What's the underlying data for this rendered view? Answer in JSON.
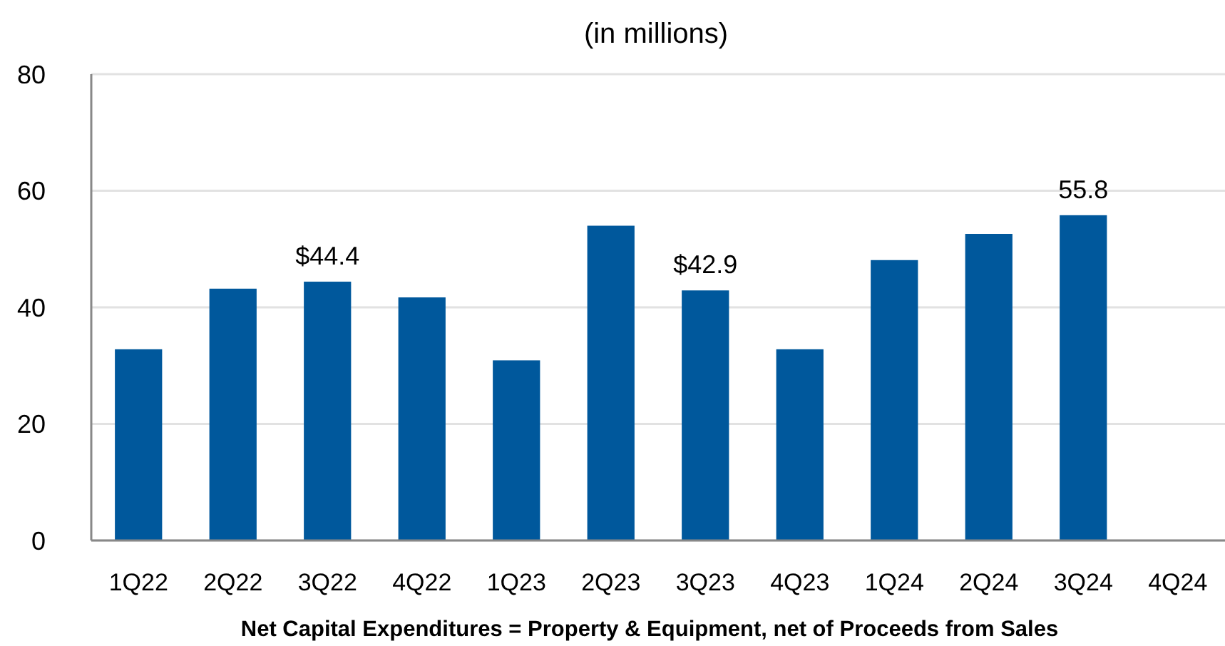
{
  "chart_data": {
    "type": "bar",
    "subtitle": "(in millions)",
    "categories": [
      "1Q22",
      "2Q22",
      "3Q22",
      "4Q22",
      "1Q23",
      "2Q23",
      "3Q23",
      "4Q23",
      "1Q24",
      "2Q24",
      "3Q24",
      "4Q24"
    ],
    "values": [
      32.8,
      43.2,
      44.4,
      41.7,
      30.9,
      54.0,
      42.9,
      32.8,
      48.1,
      52.6,
      55.8,
      null
    ],
    "value_labels": [
      null,
      null,
      "$44.4",
      null,
      null,
      null,
      "$42.9",
      null,
      null,
      null,
      "55.8",
      null
    ],
    "color": "#00589c",
    "ylim": [
      0,
      80
    ],
    "yticks": [
      0,
      20,
      40,
      60,
      80
    ],
    "grid": "y",
    "annotations": [
      "Net Capital Expenditures = Property & Equipment, net of Proceeds from Sales"
    ]
  }
}
